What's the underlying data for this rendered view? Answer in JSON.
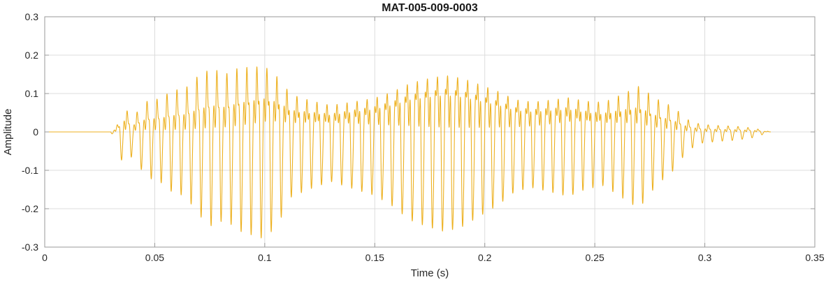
{
  "chart_data": {
    "type": "line",
    "title": "MAT-005-009-0003",
    "xlabel": "Time (s)",
    "ylabel": "Amplitude",
    "xlim": [
      0,
      0.35
    ],
    "ylim": [
      -0.3,
      0.3
    ],
    "x_ticks": [
      0,
      0.05,
      0.1,
      0.15,
      0.2,
      0.25,
      0.3,
      0.35
    ],
    "y_ticks": [
      -0.3,
      -0.2,
      -0.1,
      0,
      0.1,
      0.2,
      0.3
    ],
    "grid": true,
    "legend": "none",
    "line_color": "#EDB120",
    "grid_color": "#dcdcdc",
    "box_color": "#9a9a9a",
    "signal": {
      "description": "speech-like audio waveform, silent until ~0.03 s, ends ~0.33 s",
      "start_time": 0.03,
      "end_time": 0.33,
      "fundamental_hz": 220,
      "envelope": [
        [
          0.0,
          0.0
        ],
        [
          0.03,
          0.0
        ],
        [
          0.033,
          0.03
        ],
        [
          0.036,
          0.1
        ],
        [
          0.04,
          0.06
        ],
        [
          0.046,
          0.12
        ],
        [
          0.052,
          0.13
        ],
        [
          0.058,
          0.16
        ],
        [
          0.064,
          0.17
        ],
        [
          0.07,
          0.22
        ],
        [
          0.076,
          0.25
        ],
        [
          0.082,
          0.23
        ],
        [
          0.088,
          0.26
        ],
        [
          0.094,
          0.27
        ],
        [
          0.1,
          0.28
        ],
        [
          0.106,
          0.24
        ],
        [
          0.112,
          0.17
        ],
        [
          0.12,
          0.15
        ],
        [
          0.13,
          0.13
        ],
        [
          0.14,
          0.15
        ],
        [
          0.15,
          0.17
        ],
        [
          0.158,
          0.2
        ],
        [
          0.166,
          0.24
        ],
        [
          0.174,
          0.26
        ],
        [
          0.182,
          0.275
        ],
        [
          0.19,
          0.26
        ],
        [
          0.198,
          0.23
        ],
        [
          0.206,
          0.2
        ],
        [
          0.214,
          0.16
        ],
        [
          0.222,
          0.15
        ],
        [
          0.23,
          0.16
        ],
        [
          0.238,
          0.17
        ],
        [
          0.246,
          0.15
        ],
        [
          0.254,
          0.14
        ],
        [
          0.262,
          0.17
        ],
        [
          0.27,
          0.2
        ],
        [
          0.278,
          0.14
        ],
        [
          0.286,
          0.1
        ],
        [
          0.292,
          0.05
        ],
        [
          0.298,
          0.03
        ],
        [
          0.306,
          0.025
        ],
        [
          0.314,
          0.022
        ],
        [
          0.322,
          0.015
        ],
        [
          0.33,
          0.0
        ]
      ]
    }
  }
}
